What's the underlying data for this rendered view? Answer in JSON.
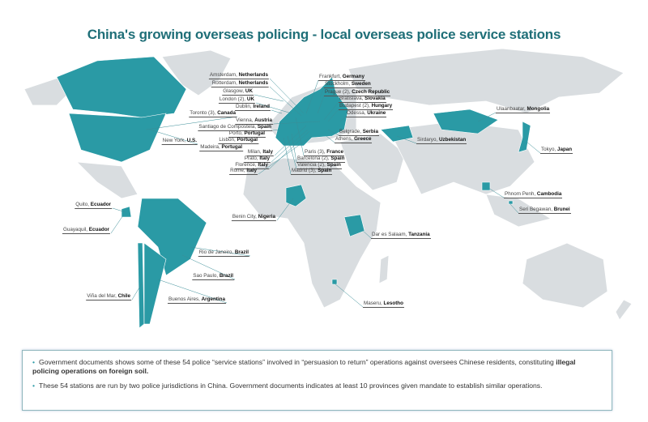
{
  "title": "China's growing overseas policing - local overseas police service stations",
  "colors": {
    "highlight": "#2a9aa5",
    "land": "#d9dde0",
    "title": "#1f6f78"
  },
  "stations": [
    {
      "city": "Amsterdam",
      "country": "Netherlands"
    },
    {
      "city": "Rotterdam",
      "country": "Netherlands"
    },
    {
      "city": "Glasgow",
      "country": "UK"
    },
    {
      "city": "London (2)",
      "country": "UK"
    },
    {
      "city": "Dublin",
      "country": "Ireland"
    },
    {
      "city": "Toronto (3)",
      "country": "Canada"
    },
    {
      "city": "Vienna",
      "country": "Austria"
    },
    {
      "city": "Santiago de Compostela",
      "country": "Spain"
    },
    {
      "city": "Porto",
      "country": "Portugal"
    },
    {
      "city": "Lisbon",
      "country": "Portugal"
    },
    {
      "city": "Madeira",
      "country": "Portugal"
    },
    {
      "city": "New York",
      "country": "U.S."
    },
    {
      "city": "Milan",
      "country": "Italy"
    },
    {
      "city": "Prato",
      "country": "Italy"
    },
    {
      "city": "Florence",
      "country": "Italy"
    },
    {
      "city": "Rome",
      "country": "Italy"
    },
    {
      "city": "Quito",
      "country": "Ecuador"
    },
    {
      "city": "Guayaquil",
      "country": "Ecuador"
    },
    {
      "city": "Benin City",
      "country": "Nigeria"
    },
    {
      "city": "Rio de Janeiro",
      "country": "Brazil"
    },
    {
      "city": "Sao Paulo",
      "country": "Brazil"
    },
    {
      "city": "Viña del Mar",
      "country": "Chile"
    },
    {
      "city": "Buenos Aires",
      "country": "Argentina"
    },
    {
      "city": "Frankfurt",
      "country": "Germany"
    },
    {
      "city": "Stockholm",
      "country": "Sweden"
    },
    {
      "city": "Prague (2)",
      "country": "Czech Republic"
    },
    {
      "city": "Bratislava",
      "country": "Slovakia"
    },
    {
      "city": "Budapest (2)",
      "country": "Hungary"
    },
    {
      "city": "Odessa",
      "country": "Ukraine"
    },
    {
      "city": "Belgrade",
      "country": "Serbia"
    },
    {
      "city": "Athens",
      "country": "Greece"
    },
    {
      "city": "Paris (3)",
      "country": "France"
    },
    {
      "city": "Barcelona (2)",
      "country": "Spain"
    },
    {
      "city": "Valencia (2)",
      "country": "Spain"
    },
    {
      "city": "Madrid (3)",
      "country": "Spain"
    },
    {
      "city": "Ulaanbaatar",
      "country": "Mongolia"
    },
    {
      "city": "Sirdaryo",
      "country": "Uzbekistan"
    },
    {
      "city": "Tokyo",
      "country": "Japan"
    },
    {
      "city": "Phnom Penh",
      "country": "Cambodia"
    },
    {
      "city": "Seri Begawan",
      "country": "Brunei"
    },
    {
      "city": "Dar es Salaam",
      "country": "Tanzania"
    },
    {
      "city": "Maseru",
      "country": "Lesotho"
    }
  ],
  "notes": [
    {
      "text": "Government documents shows some of these 54 police “service stations” involved in “persuasion to return” operations against oversees Chinese residents, constituting ",
      "bold": "illegal policing operations on foreign soil."
    },
    {
      "text": "These 54 stations are run by two police jurisdictions in China. Government documents indicates at least 10 provinces given mandate to establish similar operations.",
      "bold": ""
    }
  ]
}
